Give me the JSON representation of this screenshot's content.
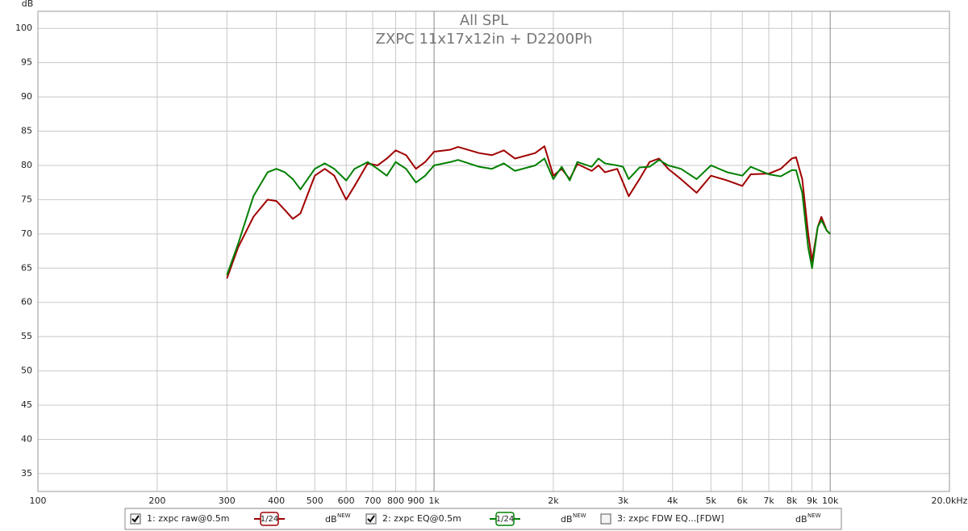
{
  "chart_data": {
    "type": "line",
    "title": "All SPL",
    "subtitle": "ZXPC 11x17x12in + D2200Ph",
    "y_label": "dB",
    "log_x": true,
    "grid": true,
    "xlim": [
      100,
      20000
    ],
    "ylim": [
      32.4,
      102.5
    ],
    "xticks": [
      100,
      200,
      300,
      400,
      500,
      600,
      700,
      800,
      900,
      {
        "value": 1000,
        "label": "1k"
      },
      {
        "value": 2000,
        "label": "2k"
      },
      {
        "value": 3000,
        "label": "3k"
      },
      {
        "value": 4000,
        "label": "4k"
      },
      {
        "value": 5000,
        "label": "5k"
      },
      {
        "value": 6000,
        "label": "6k"
      },
      {
        "value": 7000,
        "label": "7k"
      },
      {
        "value": 8000,
        "label": "8k"
      },
      {
        "value": 9000,
        "label": "9k"
      },
      {
        "value": 10000,
        "label": "10k"
      },
      {
        "value": 20000,
        "label": "20.0kHz"
      }
    ],
    "yticks": [
      35,
      40,
      45,
      50,
      55,
      60,
      65,
      70,
      75,
      80,
      85,
      90,
      95,
      100
    ],
    "x": [
      300,
      320,
      350,
      380,
      400,
      420,
      440,
      460,
      500,
      530,
      560,
      600,
      630,
      680,
      720,
      760,
      800,
      850,
      900,
      950,
      1000,
      1100,
      1150,
      1300,
      1400,
      1500,
      1600,
      1800,
      1900,
      2000,
      2100,
      2200,
      2300,
      2500,
      2600,
      2700,
      2900,
      3000,
      3100,
      3300,
      3500,
      3700,
      3900,
      4200,
      4600,
      5000,
      5500,
      6000,
      6300,
      7000,
      7500,
      8000,
      8200,
      8500,
      8800,
      9000,
      9300,
      9500,
      9800,
      10000
    ],
    "series": [
      {
        "color": "#a00000",
        "values": [
          63.5,
          68,
          72.5,
          75,
          74.8,
          73.5,
          72.2,
          73,
          78.5,
          79.5,
          78.5,
          75,
          77,
          80.3,
          80,
          81,
          82.2,
          81.5,
          79.5,
          80.5,
          82,
          82.3,
          82.7,
          81.8,
          81.5,
          82.2,
          81,
          81.8,
          82.8,
          78.5,
          79.5,
          78,
          80.2,
          79.2,
          80,
          79,
          79.5,
          77.5,
          75.5,
          78,
          80.5,
          81,
          79.5,
          78,
          76,
          78.5,
          77.8,
          77,
          78.7,
          78.8,
          79.5,
          81,
          81.2,
          78,
          70,
          66,
          71,
          72.5,
          70.5,
          70
        ]
      },
      {
        "color": "#008000",
        "values": [
          64,
          68.5,
          75.5,
          79,
          79.5,
          79,
          78,
          76.5,
          79.5,
          80.3,
          79.5,
          77.8,
          79.5,
          80.5,
          79.5,
          78.5,
          80.5,
          79.5,
          77.5,
          78.5,
          80,
          80.5,
          80.8,
          79.8,
          79.5,
          80.3,
          79.2,
          80,
          81,
          78,
          79.8,
          77.8,
          80.5,
          79.8,
          81,
          80.3,
          80,
          79.8,
          78,
          79.7,
          79.8,
          80.8,
          80,
          79.5,
          78,
          80,
          79,
          78.5,
          79.8,
          78.7,
          78.4,
          79.3,
          79.3,
          76,
          68,
          65,
          71,
          72,
          70.5,
          70
        ]
      }
    ],
    "legend": [
      {
        "name": "1: zxpc raw@0.5m",
        "color": "#a00000",
        "checked": true,
        "smoothing": "1/24",
        "unit": "dB",
        "badge": "NEW"
      },
      {
        "name": "2: zxpc EQ@0.5m",
        "color": "#008000",
        "checked": true,
        "smoothing": "1/24",
        "unit": "dB",
        "badge": "NEW"
      },
      {
        "name": "3: zxpc FDW  EQ...[FDW]",
        "color": "#3030a0",
        "checked": false,
        "unit": "dB",
        "badge": "NEW"
      }
    ]
  }
}
